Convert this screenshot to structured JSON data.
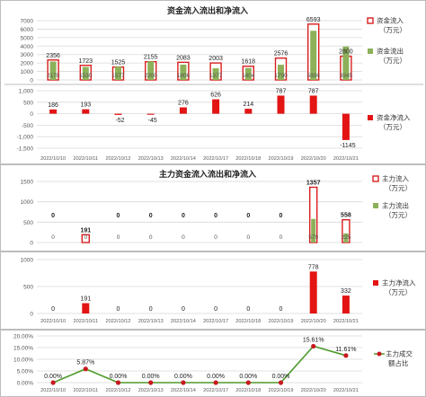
{
  "dates": [
    "2022/10/10",
    "2022/10/11",
    "2022/10/12",
    "2022/10/13",
    "2022/10/14",
    "2022/10/17",
    "2022/10/18",
    "2022/10/19",
    "2022/10/20",
    "2022/10/21"
  ],
  "colors": {
    "inflow_edge": "#d81e1e",
    "outflow": "#8db15a",
    "net": "#e31414",
    "ratio_line": "#4e9a2a",
    "ratio_marker": "#c8191e",
    "grid": "#d9d9d9"
  },
  "chart_data": [
    {
      "type": "bar",
      "title": "资金流入流出和净流入",
      "categories_ref": "dates",
      "series": [
        {
          "name": "资金流入（万元）",
          "values": [
            2356,
            1723,
            1525,
            2155,
            2083,
            2003,
            1618,
            2576,
            6593,
            2800
          ]
        },
        {
          "name": "资金流出（万元）",
          "values": [
            2170,
            1530,
            1577,
            2200,
            1806,
            1377,
            1404,
            1790,
            5806,
            3945
          ]
        }
      ],
      "value_labels": {
        "inflow": [
          "2356",
          "1723",
          "1525",
          "2155",
          "2083",
          "2003",
          "1618",
          "2576",
          "6593",
          "2800"
        ],
        "outflow": [
          "2170",
          "1530",
          "1577",
          "2200",
          "1806",
          "1377",
          "1404",
          "1790",
          "5806",
          "3945"
        ]
      },
      "yticks": [
        "0",
        "1000",
        "2000",
        "3000",
        "4000",
        "5000",
        "6000",
        "7000"
      ],
      "ylim": [
        0,
        7000
      ],
      "legend": "right"
    },
    {
      "type": "bar",
      "categories_ref": "dates",
      "series": [
        {
          "name": "资金净流入（万元）",
          "values": [
            186,
            193,
            -52,
            -45,
            276,
            626,
            214,
            787,
            787,
            -1145
          ]
        }
      ],
      "value_labels": [
        "186",
        "193",
        "-52",
        "-45",
        "276",
        "626",
        "214",
        "787",
        "787",
        "-1145"
      ],
      "yticks": [
        "1,000",
        "500",
        "0",
        "-500",
        "-1,000",
        "-1,500"
      ],
      "ylim": [
        -1500,
        1000
      ],
      "legend": "right"
    },
    {
      "type": "bar",
      "title": "主力资金流入流出和净流入",
      "categories_ref": "dates",
      "series": [
        {
          "name": "主力流入（万元）",
          "values": [
            0,
            191,
            0,
            0,
            0,
            0,
            0,
            0,
            1357,
            558
          ]
        },
        {
          "name": "主力流出（万元）",
          "values": [
            0,
            0,
            0,
            0,
            0,
            0,
            0,
            0,
            579,
            225
          ]
        }
      ],
      "value_labels": {
        "inflow": [
          "0",
          "191",
          "0",
          "0",
          "0",
          "0",
          "0",
          "0",
          "1357",
          "558"
        ],
        "outflow": [
          "0",
          "0",
          "0",
          "0",
          "0",
          "0",
          "0",
          "0",
          "579",
          "225"
        ]
      },
      "yticks": [
        "0",
        "500",
        "1000",
        "1500"
      ],
      "ylim": [
        0,
        1500
      ],
      "legend": "right"
    },
    {
      "type": "bar",
      "categories_ref": "dates",
      "series": [
        {
          "name": "主力净流入（万元）",
          "values": [
            0,
            191,
            0,
            0,
            0,
            0,
            0,
            0,
            778,
            332
          ]
        }
      ],
      "value_labels": [
        "0",
        "191",
        "0",
        "0",
        "0",
        "0",
        "0",
        "0",
        "778",
        "332"
      ],
      "yticks": [
        "0",
        "500",
        "1000"
      ],
      "ylim": [
        0,
        1000
      ],
      "legend": "right"
    },
    {
      "type": "line",
      "categories_ref": "dates",
      "series": [
        {
          "name": "主力成交额占比",
          "values": [
            0,
            5.87,
            0,
            0,
            0,
            0,
            0,
            0,
            15.61,
            11.61
          ]
        }
      ],
      "value_labels": [
        "0.00%",
        "5.87%",
        "0.00%",
        "0.00%",
        "0.00%",
        "0.00%",
        "0.00%",
        "0.00%",
        "15.61%",
        "11.61%"
      ],
      "yticks": [
        "0.00%",
        "5.00%",
        "10.00%",
        "15.00%",
        "20.00%"
      ],
      "ylim": [
        0,
        20
      ],
      "legend": "right"
    }
  ],
  "legends": {
    "p1": [
      "资金流入",
      "（万元）",
      "资金流出",
      "（万元）"
    ],
    "p2": [
      "资金净流入",
      "（万元）"
    ],
    "p3": [
      "主力流入",
      "（万元）",
      "主力流出",
      "（万元）"
    ],
    "p4": [
      "主力净流入",
      "（万元）"
    ],
    "p5": [
      "主力成交",
      "额占比"
    ]
  }
}
